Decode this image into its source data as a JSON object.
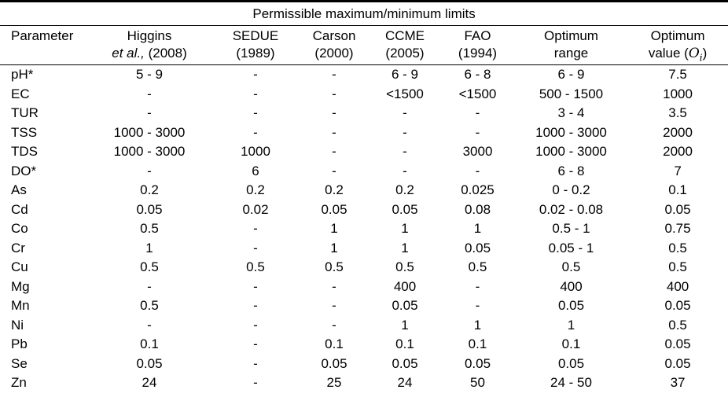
{
  "page": {
    "background_color": "#ffffff",
    "text_color": "#000000",
    "rule_color": "#000000"
  },
  "table": {
    "title": "Permissible maximum/minimum limits",
    "header": {
      "parameter": "Parameter",
      "sources": [
        {
          "line1": "Higgins",
          "line2_italic": "et al.,",
          "line2": "(2008)"
        },
        {
          "line1": "SEDUE",
          "line2": "(1989)"
        },
        {
          "line1": "Carson",
          "line2": "(2000)"
        },
        {
          "line1": "CCME",
          "line2": "(2005)"
        },
        {
          "line1": "FAO",
          "line2": "(1994)"
        },
        {
          "line1": "Optimum",
          "line2": "range"
        },
        {
          "line1": "Optimum",
          "line2_prefix": "value (",
          "math_symbol": "O",
          "math_subscript": "i",
          "line2_suffix": ")"
        }
      ]
    },
    "rows": [
      {
        "parameter": "pH*",
        "values": [
          "5 - 9",
          "-",
          "-",
          "6 - 9",
          "6 - 8",
          "6 - 9",
          "7.5"
        ]
      },
      {
        "parameter": "EC",
        "values": [
          "-",
          "-",
          "-",
          "<1500",
          "<1500",
          "500 - 1500",
          "1000"
        ]
      },
      {
        "parameter": "TUR",
        "values": [
          "-",
          "-",
          "-",
          "-",
          "-",
          "3 - 4",
          "3.5"
        ]
      },
      {
        "parameter": "TSS",
        "values": [
          "1000 - 3000",
          "-",
          "-",
          "-",
          "-",
          "1000 - 3000",
          "2000"
        ]
      },
      {
        "parameter": "TDS",
        "values": [
          "1000 - 3000",
          "1000",
          "-",
          "-",
          "3000",
          "1000 - 3000",
          "2000"
        ]
      },
      {
        "parameter": "DO*",
        "values": [
          "-",
          "6",
          "-",
          "-",
          "-",
          "6 - 8",
          "7"
        ]
      },
      {
        "parameter": "As",
        "values": [
          "0.2",
          "0.2",
          "0.2",
          "0.2",
          "0.025",
          "0 - 0.2",
          "0.1"
        ]
      },
      {
        "parameter": "Cd",
        "values": [
          "0.05",
          "0.02",
          "0.05",
          "0.05",
          "0.08",
          "0.02 - 0.08",
          "0.05"
        ]
      },
      {
        "parameter": "Co",
        "values": [
          "0.5",
          "-",
          "1",
          "1",
          "1",
          "0.5 - 1",
          "0.75"
        ]
      },
      {
        "parameter": "Cr",
        "values": [
          "1",
          "-",
          "1",
          "1",
          "0.05",
          "0.05 - 1",
          "0.5"
        ]
      },
      {
        "parameter": "Cu",
        "values": [
          "0.5",
          "0.5",
          "0.5",
          "0.5",
          "0.5",
          "0.5",
          "0.5"
        ]
      },
      {
        "parameter": "Mg",
        "values": [
          "-",
          "-",
          "-",
          "400",
          "-",
          "400",
          "400"
        ]
      },
      {
        "parameter": "Mn",
        "values": [
          "0.5",
          "-",
          "-",
          "0.05",
          "-",
          "0.05",
          "0.05"
        ]
      },
      {
        "parameter": "Ni",
        "values": [
          "-",
          "-",
          "-",
          "1",
          "1",
          "1",
          "0.5"
        ]
      },
      {
        "parameter": "Pb",
        "values": [
          "0.1",
          "-",
          "0.1",
          "0.1",
          "0.1",
          "0.1",
          "0.05"
        ]
      },
      {
        "parameter": "Se",
        "values": [
          "0.05",
          "-",
          "0.05",
          "0.05",
          "0.05",
          "0.05",
          "0.05"
        ]
      },
      {
        "parameter": "Zn",
        "values": [
          "24",
          "-",
          "25",
          "24",
          "50",
          "24 - 50",
          "37"
        ]
      }
    ]
  }
}
